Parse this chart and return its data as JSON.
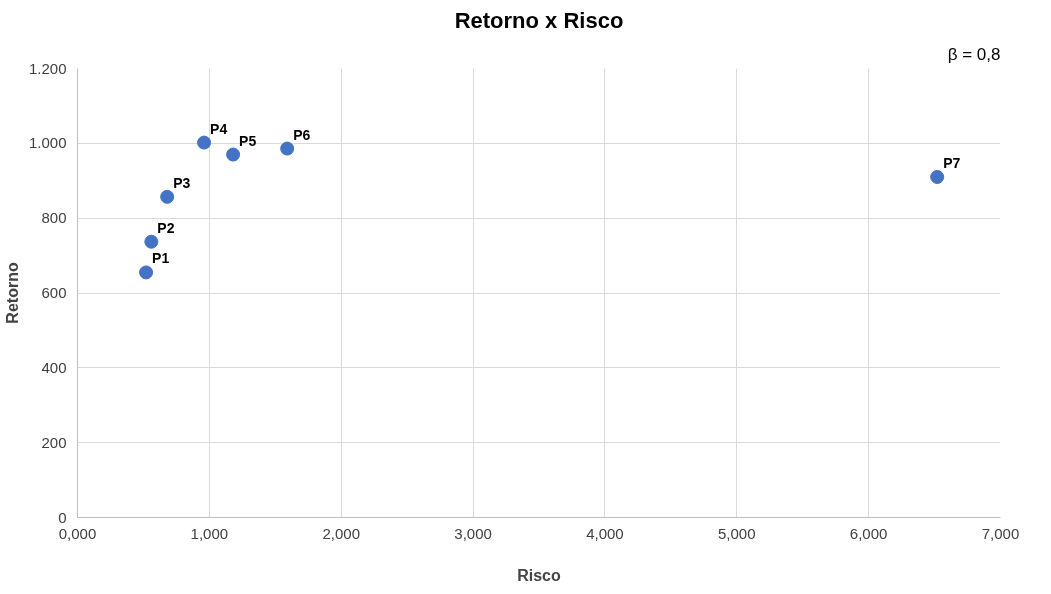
{
  "chart_data": {
    "type": "scatter",
    "title": "Retorno x Risco",
    "xlabel": "Risco",
    "ylabel": "Retorno",
    "annotations": [
      "β = 0,8"
    ],
    "x": [
      0.52,
      0.56,
      0.68,
      0.96,
      1.18,
      1.59,
      6.52
    ],
    "series": [
      {
        "color": "#4472c4",
        "values": [
          655,
          737,
          857,
          1002,
          970,
          986,
          910
        ],
        "value_labels": [
          "P1",
          "P2",
          "P3",
          "P4",
          "P5",
          "P6",
          "P7"
        ]
      }
    ],
    "xlim": [
      0,
      7
    ],
    "xticks": [
      {
        "value": 0,
        "label": "0,000"
      },
      {
        "value": 1,
        "label": "1,000"
      },
      {
        "value": 2,
        "label": "2,000"
      },
      {
        "value": 3,
        "label": "3,000"
      },
      {
        "value": 4,
        "label": "4,000"
      },
      {
        "value": 5,
        "label": "5,000"
      },
      {
        "value": 6,
        "label": "6,000"
      },
      {
        "value": 7,
        "label": "7,000"
      }
    ],
    "ylim": [
      0,
      1200
    ],
    "yticks": [
      0,
      200,
      400,
      600,
      800,
      {
        "value": 1000,
        "label": "1.000"
      },
      {
        "value": 1200,
        "label": "1.200"
      }
    ],
    "grid": true,
    "marker": "circle"
  }
}
